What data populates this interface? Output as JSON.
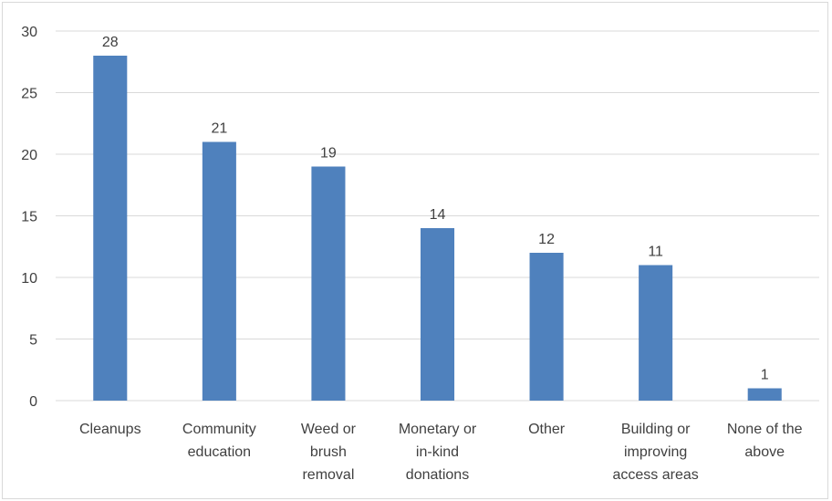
{
  "chart_data": {
    "type": "bar",
    "categories": [
      "Cleanups",
      "Community education",
      "Weed or brush removal",
      "Monetary or in-kind donations",
      "Other",
      "Building or improving access areas",
      "None of the above"
    ],
    "category_lines": [
      [
        "Cleanups"
      ],
      [
        "Community",
        "education"
      ],
      [
        "Weed or",
        "brush",
        "removal"
      ],
      [
        "Monetary or",
        "in-kind",
        "donations"
      ],
      [
        "Other"
      ],
      [
        "Building or",
        "improving",
        "access areas"
      ],
      [
        "None of the",
        "above"
      ]
    ],
    "values": [
      28,
      21,
      19,
      14,
      12,
      11,
      1
    ],
    "title": "",
    "xlabel": "",
    "ylabel": "",
    "ylim": [
      0,
      30
    ],
    "yticks": [
      0,
      5,
      10,
      15,
      20,
      25,
      30
    ],
    "grid": true,
    "data_labels": true,
    "bar_color": "#4f81bd",
    "grid_color": "#d9d9d9",
    "text_color": "#404040"
  }
}
